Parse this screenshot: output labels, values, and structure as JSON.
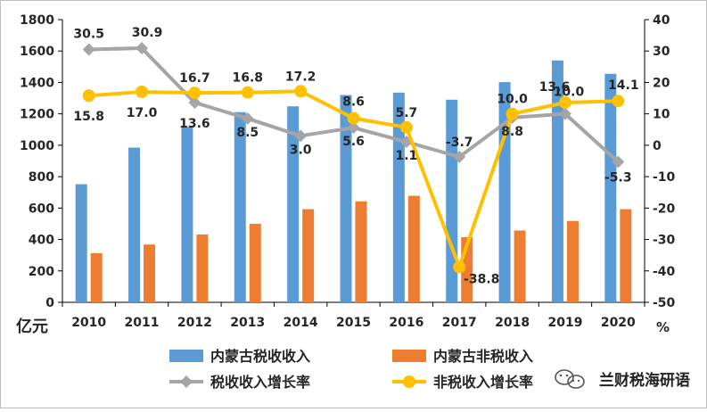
{
  "chart_data": {
    "type": "bar+line",
    "categories": [
      "2010",
      "2011",
      "2012",
      "2013",
      "2014",
      "2015",
      "2016",
      "2017",
      "2018",
      "2019",
      "2020"
    ],
    "series": [
      {
        "name": "内蒙古税收收入",
        "kind": "bar",
        "axis": "left",
        "color": "#5B9BD5",
        "values": [
          752,
          985,
          1117,
          1211,
          1248,
          1320,
          1335,
          1290,
          1402,
          1540,
          1455
        ]
      },
      {
        "name": "内蒙古非税收入",
        "kind": "bar",
        "axis": "left",
        "color": "#ED7D31",
        "values": [
          313,
          368,
          432,
          500,
          593,
          643,
          678,
          415,
          457,
          518,
          593
        ]
      },
      {
        "name": "税收收入增长率",
        "kind": "line",
        "axis": "right",
        "color": "#A5A5A5",
        "marker": "diamond",
        "values": [
          30.5,
          30.9,
          13.6,
          8.5,
          3.0,
          5.6,
          1.1,
          -3.7,
          8.8,
          10.0,
          -5.3
        ],
        "labels": [
          "30.5",
          "30.9",
          "13.6",
          "8.5",
          "3.0",
          "5.6",
          "1.1",
          "-3.7",
          "8.8",
          "10.0",
          "-5.3"
        ]
      },
      {
        "name": "非税收入增长率",
        "kind": "line",
        "axis": "right",
        "color": "#FFC000",
        "marker": "circle",
        "values": [
          15.8,
          17.0,
          16.7,
          16.8,
          17.2,
          8.6,
          5.7,
          -38.8,
          10.0,
          13.6,
          14.1
        ],
        "labels": [
          "15.8",
          "17.0",
          "16.7",
          "16.8",
          "17.2",
          "8.6",
          "5.7",
          "-38.8",
          "10.0",
          "13.6",
          "14.1"
        ]
      }
    ],
    "y_left": {
      "min": 0,
      "max": 1800,
      "step": 200,
      "unit_label": "亿元"
    },
    "y_right": {
      "min": -50,
      "max": 40,
      "step": 10,
      "unit_label": "%"
    },
    "grid": false,
    "legend_position": "bottom"
  },
  "watermark": {
    "text": "兰财税海研语",
    "icon": "wechat-logo-icon"
  },
  "colors": {
    "axis": "#000000",
    "text": "#262626",
    "label_dark": "#262626"
  }
}
